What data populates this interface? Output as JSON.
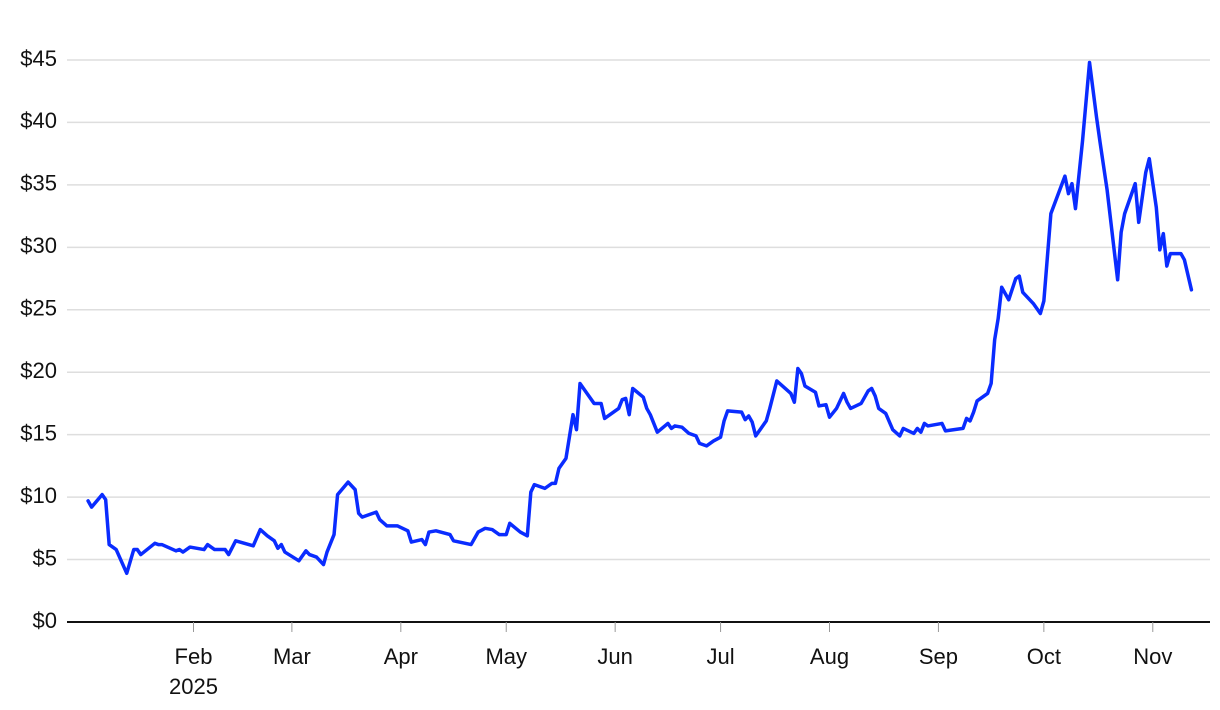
{
  "chart_data": {
    "type": "line",
    "x": [
      1,
      2,
      5,
      6,
      7,
      9,
      12,
      14,
      15,
      16,
      20,
      21,
      22,
      26,
      27,
      28,
      30,
      34,
      35,
      37,
      40,
      41,
      43,
      48,
      50,
      52,
      54,
      55,
      56,
      57,
      61,
      63,
      64,
      66,
      68,
      69,
      71,
      72,
      75,
      77,
      78,
      79,
      83,
      84,
      86,
      89,
      92,
      93,
      96,
      97,
      98,
      100,
      104,
      105,
      110,
      112,
      114,
      116,
      118,
      120,
      121,
      124,
      126,
      127,
      128,
      131,
      133,
      134,
      135,
      137,
      139,
      140,
      141,
      143,
      145,
      147,
      148,
      149,
      152,
      153,
      154,
      155,
      156,
      159,
      160,
      161,
      163,
      166,
      167,
      168,
      170,
      172,
      174,
      175,
      177,
      179,
      181,
      182,
      183,
      187,
      188,
      189,
      190,
      191,
      194,
      195,
      197,
      199,
      201,
      202,
      203,
      204,
      205,
      208,
      209,
      211,
      212,
      214,
      216,
      217,
      218,
      221,
      223,
      224,
      225,
      226,
      228,
      230,
      232,
      233,
      236,
      237,
      238,
      239,
      240,
      244,
      245,
      250,
      251,
      252,
      253,
      254,
      257,
      258,
      259,
      260,
      261,
      263,
      265,
      266,
      267,
      270,
      272,
      273,
      275,
      279,
      280,
      281,
      282,
      284,
      286,
      288,
      289,
      291,
      292,
      294,
      295,
      296,
      299,
      300,
      302,
      303,
      305,
      306,
      307,
      308,
      309,
      312,
      313,
      315
    ],
    "series": [
      {
        "color": "#0a2cff",
        "values": [
          9.7,
          9.2,
          10.2,
          9.8,
          6.2,
          5.8,
          3.9,
          5.8,
          5.8,
          5.4,
          6.3,
          6.2,
          6.2,
          5.7,
          5.8,
          5.6,
          6.0,
          5.8,
          6.2,
          5.8,
          5.8,
          5.4,
          6.5,
          6.1,
          7.4,
          6.9,
          6.5,
          5.9,
          6.2,
          5.6,
          4.9,
          5.7,
          5.4,
          5.2,
          4.6,
          5.6,
          7.0,
          10.2,
          11.2,
          10.6,
          8.7,
          8.4,
          8.8,
          8.2,
          7.7,
          7.7,
          7.3,
          6.4,
          6.6,
          6.2,
          7.2,
          7.3,
          7.0,
          6.5,
          6.2,
          7.2,
          7.5,
          7.4,
          7.0,
          7.0,
          7.9,
          7.2,
          6.9,
          10.4,
          11.0,
          10.7,
          11.1,
          11.1,
          12.3,
          13.1,
          16.6,
          15.4,
          19.1,
          18.3,
          17.5,
          17.5,
          16.3,
          16.5,
          17.1,
          17.8,
          17.9,
          16.6,
          18.7,
          18.0,
          17.1,
          16.6,
          15.2,
          15.9,
          15.5,
          15.7,
          15.6,
          15.1,
          14.9,
          14.3,
          14.1,
          14.5,
          14.8,
          16.1,
          16.9,
          16.8,
          16.2,
          16.5,
          16.0,
          14.9,
          16.1,
          17.1,
          19.3,
          18.8,
          18.3,
          17.6,
          20.3,
          19.9,
          18.9,
          18.4,
          17.3,
          17.4,
          16.4,
          17.1,
          18.3,
          17.6,
          17.1,
          17.5,
          18.5,
          18.7,
          18.1,
          17.1,
          16.7,
          15.4,
          14.9,
          15.5,
          15.1,
          15.5,
          15.2,
          15.9,
          15.7,
          15.9,
          15.3,
          15.5,
          16.3,
          16.1,
          16.8,
          17.7,
          18.3,
          19.1,
          22.6,
          24.3,
          26.8,
          25.8,
          27.5,
          27.7,
          26.4,
          25.5,
          24.7,
          25.7,
          32.7,
          35.7,
          34.3,
          35.1,
          33.1,
          38.5,
          44.8,
          40.4,
          38.4,
          34.6,
          32.2,
          27.4,
          31.2,
          32.7,
          35.1,
          32.0,
          36.0,
          37.1,
          33.2,
          29.8,
          31.1,
          28.5,
          29.5,
          29.5,
          29.0,
          26.6
        ]
      }
    ],
    "xlim": [
      -5,
      320
    ],
    "xticks": [
      {
        "value": 31,
        "label": "Feb"
      },
      {
        "value": 59,
        "label": "Mar"
      },
      {
        "value": 90,
        "label": "Apr"
      },
      {
        "value": 120,
        "label": "May"
      },
      {
        "value": 151,
        "label": "Jun"
      },
      {
        "value": 181,
        "label": "Jul"
      },
      {
        "value": 212,
        "label": "Aug"
      },
      {
        "value": 243,
        "label": "Sep"
      },
      {
        "value": 273,
        "label": "Oct"
      },
      {
        "value": 304,
        "label": "Nov"
      }
    ],
    "x_year_label": "2025",
    "ylim": [
      0,
      46
    ],
    "yticks": [
      {
        "value": 0,
        "label": "$0"
      },
      {
        "value": 5,
        "label": "$5"
      },
      {
        "value": 10,
        "label": "$10"
      },
      {
        "value": 15,
        "label": "$15"
      },
      {
        "value": 20,
        "label": "$20"
      },
      {
        "value": 25,
        "label": "$25"
      },
      {
        "value": 30,
        "label": "$30"
      },
      {
        "value": 35,
        "label": "$35"
      },
      {
        "value": 40,
        "label": "$40"
      },
      {
        "value": 45,
        "label": "$45"
      }
    ],
    "grid": true
  }
}
